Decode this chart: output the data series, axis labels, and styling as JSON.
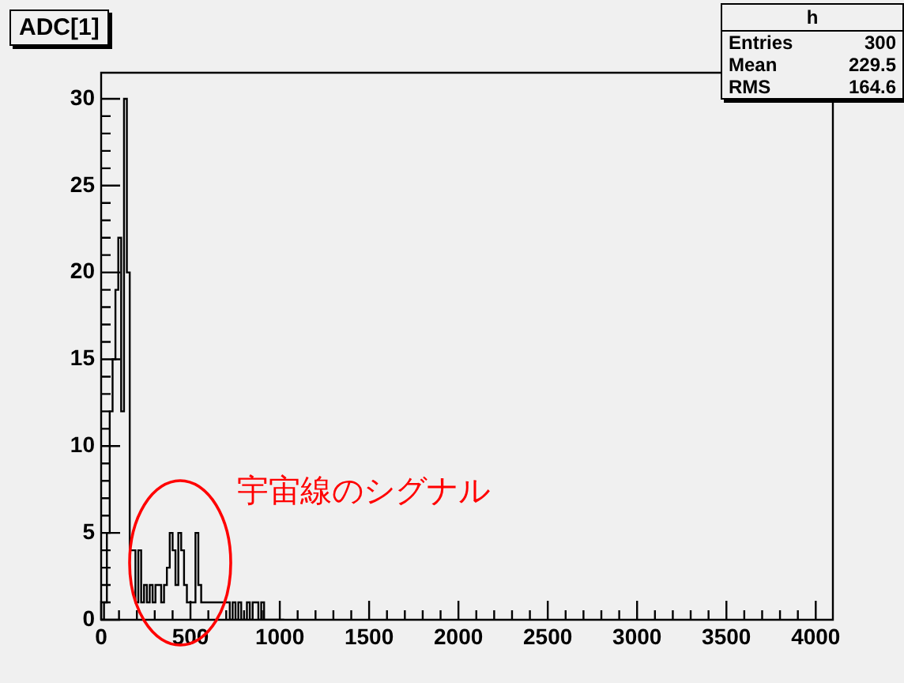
{
  "chart_data": {
    "type": "histogram",
    "title": "ADC[1]",
    "annotations": [
      "h",
      "Entries",
      "300",
      "Mean",
      "229.5",
      "RMS",
      "164.6",
      "宇宙線のシグナル"
    ],
    "bins": [
      0,
      16,
      32,
      48,
      64,
      80,
      96,
      112,
      128,
      144,
      160,
      176,
      192,
      208,
      224,
      240,
      256,
      272,
      288,
      304,
      320,
      336,
      352,
      368,
      384,
      400,
      416,
      432,
      448,
      464,
      480,
      496,
      512,
      528,
      544,
      560,
      576,
      592,
      608,
      624,
      640,
      656,
      672,
      688,
      704,
      720,
      736,
      752,
      768,
      784,
      800,
      816,
      832,
      848,
      864,
      880,
      896,
      912,
      928,
      944,
      960,
      976,
      992,
      1008,
      1024
    ],
    "values": [
      0,
      0,
      1,
      5,
      12,
      15,
      19,
      22,
      12,
      30,
      20,
      4,
      4,
      1,
      4,
      1,
      2,
      1,
      2,
      1,
      2,
      2,
      1,
      2,
      3,
      5,
      4,
      2,
      5,
      4,
      2,
      1,
      1,
      1,
      5,
      2,
      1,
      1,
      1,
      1,
      1,
      1,
      1,
      1,
      1,
      1,
      0,
      1,
      0,
      1,
      0,
      0,
      1,
      0,
      1,
      1,
      0,
      1,
      0,
      0,
      0,
      0,
      0,
      0
    ],
    "color": "#000000",
    "xlim": [
      0,
      4096
    ],
    "ylim": [
      0,
      31.5
    ],
    "xticks": [
      0,
      500,
      1000,
      1500,
      2000,
      2500,
      3000,
      3500,
      4000
    ],
    "yticks": [
      0,
      5,
      10,
      15,
      20,
      25,
      30
    ],
    "grid": false,
    "legend": false
  }
}
